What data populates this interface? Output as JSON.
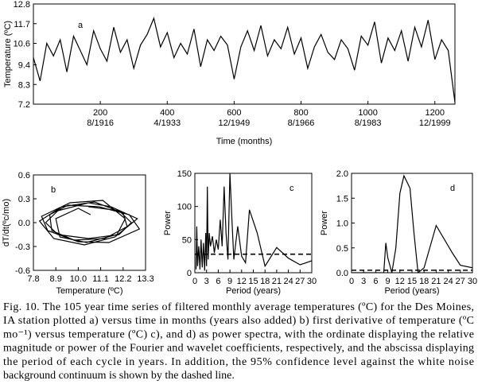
{
  "chart_data": [
    {
      "type": "line",
      "panel_label": "a",
      "xlabel": "Time (months)",
      "ylabel": "Temperature (ºC)",
      "x": [
        0,
        20,
        40,
        60,
        80,
        100,
        120,
        140,
        160,
        180,
        200,
        220,
        240,
        260,
        280,
        300,
        320,
        340,
        360,
        380,
        400,
        420,
        440,
        460,
        480,
        500,
        520,
        540,
        560,
        580,
        600,
        620,
        640,
        660,
        680,
        700,
        720,
        740,
        760,
        780,
        800,
        820,
        840,
        860,
        880,
        900,
        920,
        940,
        960,
        980,
        1000,
        1020,
        1040,
        1060,
        1080,
        1100,
        1120,
        1140,
        1160,
        1180,
        1200,
        1220,
        1240,
        1260
      ],
      "values": [
        9.8,
        8.5,
        10.6,
        9.9,
        10.8,
        9.0,
        11.0,
        10.2,
        9.4,
        11.3,
        10.3,
        9.6,
        11.5,
        10.1,
        10.8,
        9.2,
        10.5,
        11.1,
        12.0,
        10.4,
        11.2,
        9.8,
        10.6,
        10.0,
        11.4,
        9.3,
        10.8,
        10.2,
        11.0,
        10.5,
        8.6,
        10.4,
        11.3,
        10.2,
        11.6,
        9.9,
        10.8,
        10.3,
        11.5,
        10.0,
        10.9,
        9.2,
        10.4,
        11.1,
        10.1,
        9.7,
        10.8,
        10.3,
        9.1,
        11.0,
        10.5,
        11.8,
        9.5,
        10.9,
        10.2,
        11.3,
        9.6,
        11.5,
        10.4,
        11.9,
        9.7,
        10.8,
        10.2,
        7.3
      ],
      "color": "#000000",
      "xlim": [
        0,
        1260
      ],
      "xticks": [
        200,
        400,
        600,
        800,
        1000,
        1200
      ],
      "date_labels": [
        "8/1916",
        "4/1933",
        "12/1949",
        "8/1966",
        "8/1983",
        "12/1999"
      ],
      "ylim": [
        7.2,
        12.8
      ],
      "yticks": [
        7.2,
        8.3,
        9.4,
        10.6,
        11.7,
        12.8
      ]
    },
    {
      "type": "line",
      "panel_label": "b",
      "xlabel": "Temperature (ºC)",
      "ylabel": "dT/dt(ºc/mo)",
      "x": [
        10.5,
        12.0,
        12.6,
        12.0,
        10.5,
        9.0,
        8.4,
        9.0,
        10.5,
        11.6,
        12.9,
        11.8,
        10.3,
        8.8,
        8.1,
        9.2,
        10.8,
        12.2,
        12.4,
        11.3,
        9.8,
        8.7,
        8.6,
        9.5,
        11.0,
        12.5,
        13.0,
        11.5,
        10.0,
        8.5,
        8.2,
        9.6,
        11.2,
        12.3,
        11.9,
        10.4,
        9.1,
        8.9,
        10.0,
        10.6
      ],
      "values": [
        0.2,
        0.15,
        0,
        -0.15,
        -0.2,
        -0.15,
        0,
        0.15,
        0.25,
        0.2,
        0.05,
        -0.18,
        -0.28,
        -0.2,
        0.02,
        0.2,
        0.26,
        0.12,
        -0.05,
        -0.2,
        -0.22,
        -0.1,
        0.1,
        0.22,
        0.2,
        0.1,
        -0.08,
        -0.25,
        -0.24,
        -0.1,
        0.08,
        0.25,
        0.28,
        0.05,
        -0.15,
        -0.25,
        -0.18,
        0.05,
        0.18,
        0.1
      ],
      "color": "#000000",
      "xlim": [
        7.8,
        13.3
      ],
      "xticks": [
        7.8,
        8.9,
        {
          "value": 10,
          "label": "10.0"
        },
        11.1,
        12.2,
        13.3
      ],
      "ylim": [
        -0.6,
        0.6
      ],
      "yticks": [
        -0.6,
        -0.3,
        {
          "value": 0,
          "label": "0.0"
        },
        0.3,
        0.6
      ]
    },
    {
      "type": "line",
      "panel_label": "c",
      "xlabel": "Period (years)",
      "ylabel": "Power",
      "x": [
        0.3,
        0.5,
        0.7,
        1,
        1.3,
        1.6,
        1.9,
        2.2,
        2.5,
        2.8,
        3.0,
        3.2,
        3.4,
        3.7,
        4.0,
        4.5,
        5,
        5.5,
        6,
        6.5,
        7,
        7.5,
        8,
        8.5,
        9,
        9.5,
        10,
        11,
        12,
        13,
        14,
        16,
        18,
        21,
        24,
        27,
        30
      ],
      "values": [
        5,
        70,
        10,
        40,
        5,
        50,
        8,
        45,
        3,
        60,
        10,
        130,
        20,
        60,
        40,
        55,
        30,
        50,
        35,
        80,
        40,
        130,
        60,
        20,
        150,
        80,
        20,
        70,
        25,
        15,
        95,
        60,
        10,
        38,
        22,
        12,
        18
      ],
      "color": "#000000",
      "threshold": 28,
      "xlim": [
        0,
        30
      ],
      "xticks": [
        0,
        3,
        6,
        9,
        12,
        15,
        18,
        21,
        24,
        27,
        30
      ],
      "ylim": [
        0,
        150
      ],
      "yticks": [
        0,
        50,
        100,
        150
      ]
    },
    {
      "type": "line",
      "panel_label": "d",
      "xlabel": "Period (years)",
      "ylabel": "Power",
      "x": [
        0,
        3,
        6,
        8,
        8.5,
        9,
        10,
        11,
        12,
        13,
        14.5,
        15.5,
        16.5,
        18,
        21,
        25,
        27,
        30
      ],
      "values": [
        0,
        0,
        0,
        0,
        0.6,
        0.3,
        0,
        0.5,
        1.6,
        1.95,
        1.7,
        0.8,
        0,
        0.1,
        0.95,
        0.4,
        0.15,
        0.1
      ],
      "color": "#000000",
      "threshold": 0.05,
      "xlim": [
        0,
        30
      ],
      "xticks": [
        0,
        3,
        6,
        9,
        12,
        15,
        18,
        21,
        24,
        27,
        30
      ],
      "ylim": [
        0,
        2
      ],
      "yticks": [
        {
          "value": 0,
          "label": "0.0"
        },
        0.5,
        {
          "value": 1,
          "label": "1.0"
        },
        1.5,
        {
          "value": 2,
          "label": "2.0"
        }
      ]
    }
  ],
  "caption": [
    "Fig. 10. The 105 year time series of filtered monthly average temperatures (ºC) for the Des Moines,",
    "IA station plotted a) versus time in months (years also added) b) first derivative of temperature (ºC",
    "mo⁻¹) versus temperature (ºC) c), and d) as power spectra, with the ordinate displaying the relative",
    "magnitude or power of the Fourier and wavelet coefficients, respectively, and the abscissa displaying",
    "the period of each cycle in years. In addition, the 95% confidence level against the white noise",
    "background continuum is shown by the dashed line."
  ]
}
